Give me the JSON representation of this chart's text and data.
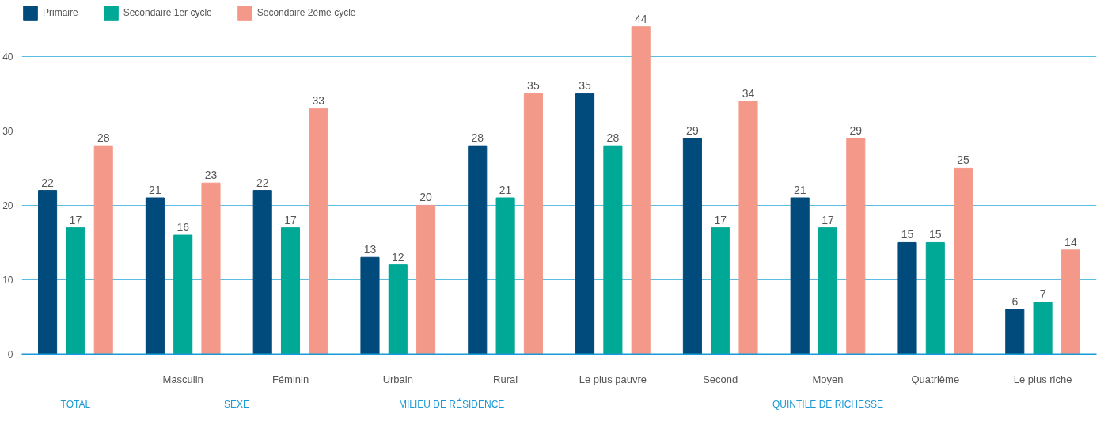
{
  "chart_data": {
    "type": "bar",
    "categories": [
      null,
      "Masculin",
      "Féminin",
      "Urbain",
      "Rural",
      "Le plus pauvre",
      "Second",
      "Moyen",
      "Quatrième",
      "Le plus riche"
    ],
    "series": [
      {
        "name": "Primaire",
        "color": "#004a7c",
        "values": [
          22,
          21,
          22,
          13,
          28,
          35,
          29,
          21,
          15,
          6
        ]
      },
      {
        "name": "Secondaire 1er cycle",
        "color": "#00a896",
        "values": [
          17,
          16,
          17,
          12,
          21,
          28,
          17,
          17,
          15,
          7
        ]
      },
      {
        "name": "Secondaire 2ème cycle",
        "color": "#f4998a",
        "values": [
          28,
          23,
          33,
          20,
          35,
          44,
          34,
          29,
          25,
          14
        ]
      }
    ],
    "annotations": [
      "TOTAL",
      "SEXE",
      "MILIEU DE RÉSIDENCE",
      "QUINTILE DE RICHESSE"
    ],
    "ylim": [
      0,
      47
    ],
    "yticks": [
      0,
      10,
      20,
      30,
      40
    ],
    "grid": "y",
    "legend": "top left",
    "data_labels": true
  }
}
